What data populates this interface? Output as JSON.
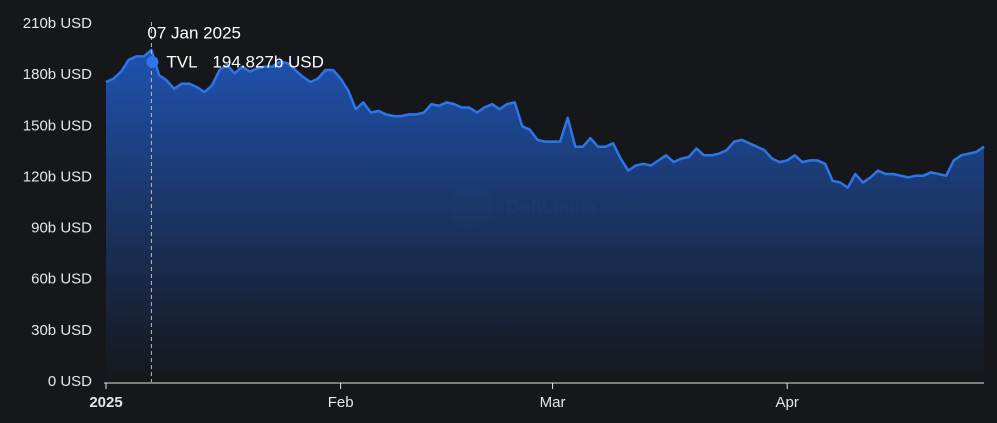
{
  "chart_data": {
    "type": "area",
    "watermark": "DefiLlama",
    "tooltip_title": "07 Jan 2025",
    "categories": [
      "2025",
      null,
      null,
      null,
      null,
      null,
      null,
      null,
      null,
      null,
      null,
      null,
      null,
      null,
      null,
      null,
      null,
      null,
      null,
      null,
      null,
      null,
      null,
      null,
      null,
      null,
      null,
      null,
      null,
      null,
      null,
      "Feb",
      null,
      null,
      null,
      null,
      null,
      null,
      null,
      null,
      null,
      null,
      null,
      null,
      null,
      null,
      null,
      null,
      null,
      null,
      null,
      null,
      null,
      null,
      null,
      null,
      null,
      null,
      null,
      "Mar",
      null,
      null,
      null,
      null,
      null,
      null,
      null,
      null,
      null,
      null,
      null,
      null,
      null,
      null,
      null,
      null,
      null,
      null,
      null,
      null,
      null,
      null,
      null,
      null,
      null,
      null,
      null,
      null,
      null,
      null,
      "Apr",
      null,
      null,
      null,
      null,
      null,
      null,
      null,
      null,
      null,
      null,
      null,
      null,
      null,
      null,
      null,
      null,
      null,
      null,
      null,
      null,
      null,
      null,
      null,
      null,
      null,
      null
    ],
    "series": [
      {
        "name": "TVL",
        "color": "#2f74e8",
        "values": [
          176,
          178,
          182,
          189,
          191,
          191,
          194.827,
          180,
          177,
          172,
          175,
          175,
          173,
          170,
          174,
          183,
          186,
          181,
          185,
          182,
          184,
          185,
          185,
          188,
          187,
          183,
          179,
          176,
          178,
          183,
          183,
          178,
          171,
          160,
          164,
          158,
          159,
          157,
          156,
          156,
          157,
          157,
          158,
          163,
          162,
          164,
          163,
          161,
          161,
          158,
          161,
          163,
          160,
          163,
          164,
          150,
          148,
          142,
          141,
          141,
          141,
          155,
          138,
          138,
          143,
          138,
          138,
          140,
          131,
          124,
          127,
          128,
          127,
          130,
          133,
          129,
          131,
          132,
          137,
          133,
          133,
          134,
          136,
          141,
          142,
          140,
          138,
          136,
          131,
          129,
          130,
          133,
          129,
          130,
          130,
          128,
          118,
          117,
          114,
          122,
          117,
          120,
          124,
          122,
          122,
          121,
          120,
          121,
          121,
          123,
          122,
          121,
          130,
          133,
          134,
          135,
          138
        ],
        "value_labels": [
          null,
          null,
          null,
          null,
          null,
          null,
          "194.827b USD",
          null,
          null,
          null,
          null,
          null,
          null,
          null,
          null,
          null,
          null,
          null,
          null,
          null,
          null,
          null,
          null,
          null,
          null,
          null,
          null,
          null,
          null,
          null,
          null,
          null,
          null,
          null,
          null,
          null,
          null,
          null,
          null,
          null,
          null,
          null,
          null,
          null,
          null,
          null,
          null,
          null,
          null,
          null,
          null,
          null,
          null,
          null,
          null,
          null,
          null,
          null,
          null,
          null,
          null,
          null,
          null,
          null,
          null,
          null,
          null,
          null,
          null,
          null,
          null,
          null,
          null,
          null,
          null,
          null,
          null,
          null,
          null,
          null,
          null,
          null,
          null,
          null,
          null,
          null,
          null,
          null,
          null,
          null,
          null,
          null,
          null,
          null,
          null,
          null,
          null,
          null,
          null,
          null,
          null,
          null,
          null,
          null,
          null,
          null,
          null,
          null,
          null,
          null,
          null,
          null,
          null,
          null,
          null,
          null,
          null
        ]
      }
    ],
    "ylim": [
      0,
      210
    ],
    "yticks": [
      {
        "value": 0,
        "label": "0 USD"
      },
      {
        "value": 30,
        "label": "30b USD"
      },
      {
        "value": 60,
        "label": "60b USD"
      },
      {
        "value": 90,
        "label": "90b USD"
      },
      {
        "value": 120,
        "label": "120b USD"
      },
      {
        "value": 150,
        "label": "150b USD"
      },
      {
        "value": 180,
        "label": "180b USD"
      },
      {
        "value": 210,
        "label": "210b USD"
      }
    ]
  }
}
